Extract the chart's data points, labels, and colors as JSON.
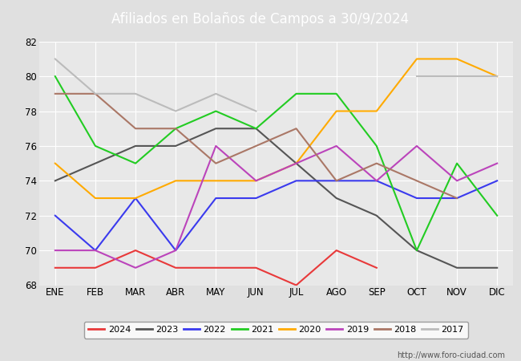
{
  "title": "Afiliados en Bolaños de Campos a 30/9/2024",
  "months": [
    "ENE",
    "FEB",
    "MAR",
    "ABR",
    "MAY",
    "JUN",
    "JUL",
    "AGO",
    "SEP",
    "OCT",
    "NOV",
    "DIC"
  ],
  "series": [
    {
      "year": "2024",
      "color": "#e8393a",
      "data": [
        69,
        69,
        70,
        69,
        69,
        69,
        68,
        70,
        69,
        null,
        null,
        null
      ]
    },
    {
      "year": "2023",
      "color": "#555555",
      "data": [
        74,
        75,
        76,
        76,
        77,
        77,
        75,
        73,
        72,
        70,
        69,
        69
      ]
    },
    {
      "year": "2022",
      "color": "#3a3aee",
      "data": [
        72,
        70,
        73,
        70,
        73,
        73,
        74,
        74,
        74,
        73,
        73,
        74
      ]
    },
    {
      "year": "2021",
      "color": "#22cc22",
      "data": [
        80,
        76,
        75,
        77,
        78,
        77,
        79,
        79,
        76,
        70,
        75,
        72
      ]
    },
    {
      "year": "2020",
      "color": "#ffaa00",
      "data": [
        75,
        73,
        73,
        74,
        74,
        74,
        75,
        78,
        78,
        81,
        81,
        80
      ]
    },
    {
      "year": "2019",
      "color": "#bb44bb",
      "data": [
        70,
        70,
        69,
        70,
        76,
        74,
        75,
        76,
        74,
        76,
        74,
        75
      ]
    },
    {
      "year": "2018",
      "color": "#aa7766",
      "data": [
        79,
        79,
        77,
        77,
        75,
        76,
        77,
        74,
        75,
        74,
        73,
        null
      ]
    },
    {
      "year": "2017",
      "color": "#bbbbbb",
      "data": [
        81,
        79,
        79,
        78,
        79,
        78,
        null,
        null,
        null,
        80,
        80,
        80
      ]
    }
  ],
  "ylim": [
    68,
    82
  ],
  "yticks": [
    68,
    70,
    72,
    74,
    76,
    78,
    80,
    82
  ],
  "header_bg": "#5b8dd9",
  "title_color": "#ffffff",
  "plot_bg": "#e8e8e8",
  "fig_bg": "#e0e0e0",
  "grid_color": "#ffffff",
  "footer_text": "http://www.foro-ciudad.com"
}
